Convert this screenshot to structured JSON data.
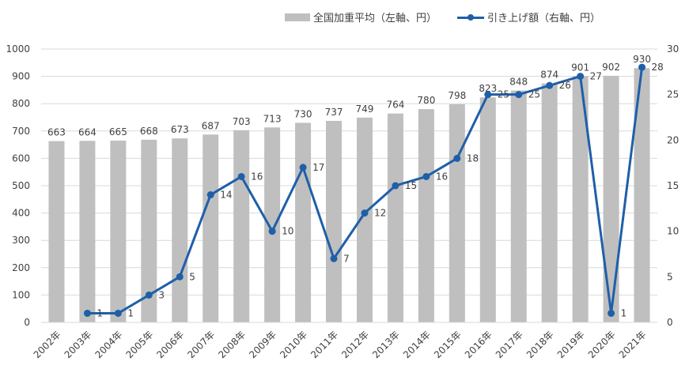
{
  "chart_data": {
    "type": "bar",
    "categories": [
      "2002年",
      "2003年",
      "2004年",
      "2005年",
      "2006年",
      "2007年",
      "2008年",
      "2009年",
      "2010年",
      "2011年",
      "2012年",
      "2013年",
      "2014年",
      "2015年",
      "2016年",
      "2017年",
      "2018年",
      "2019年",
      "2020年",
      "2021年"
    ],
    "series": [
      {
        "name": "全国加重平均（左軸、円）",
        "type": "bar",
        "axis": "left",
        "color": "#bfbfbf",
        "values": [
          663,
          664,
          665,
          668,
          673,
          687,
          703,
          713,
          730,
          737,
          749,
          764,
          780,
          798,
          823,
          848,
          874,
          901,
          902,
          930
        ]
      },
      {
        "name": "引き上げ額（右軸、円）",
        "type": "line",
        "axis": "right",
        "color": "#1f5fa8",
        "values": [
          null,
          1,
          1,
          3,
          5,
          14,
          16,
          10,
          17,
          7,
          12,
          15,
          16,
          18,
          25,
          25,
          26,
          27,
          1,
          28
        ]
      }
    ],
    "yleft": {
      "min": 0,
      "max": 1000,
      "ticks": [
        "0",
        "100",
        "200",
        "300",
        "400",
        "500",
        "600",
        "700",
        "800",
        "900",
        "1000"
      ]
    },
    "yright": {
      "min": 0,
      "max": 30,
      "ticks": [
        "0",
        "5",
        "10",
        "15",
        "20",
        "25",
        "30"
      ]
    },
    "grid": true,
    "legend": "top-right"
  }
}
